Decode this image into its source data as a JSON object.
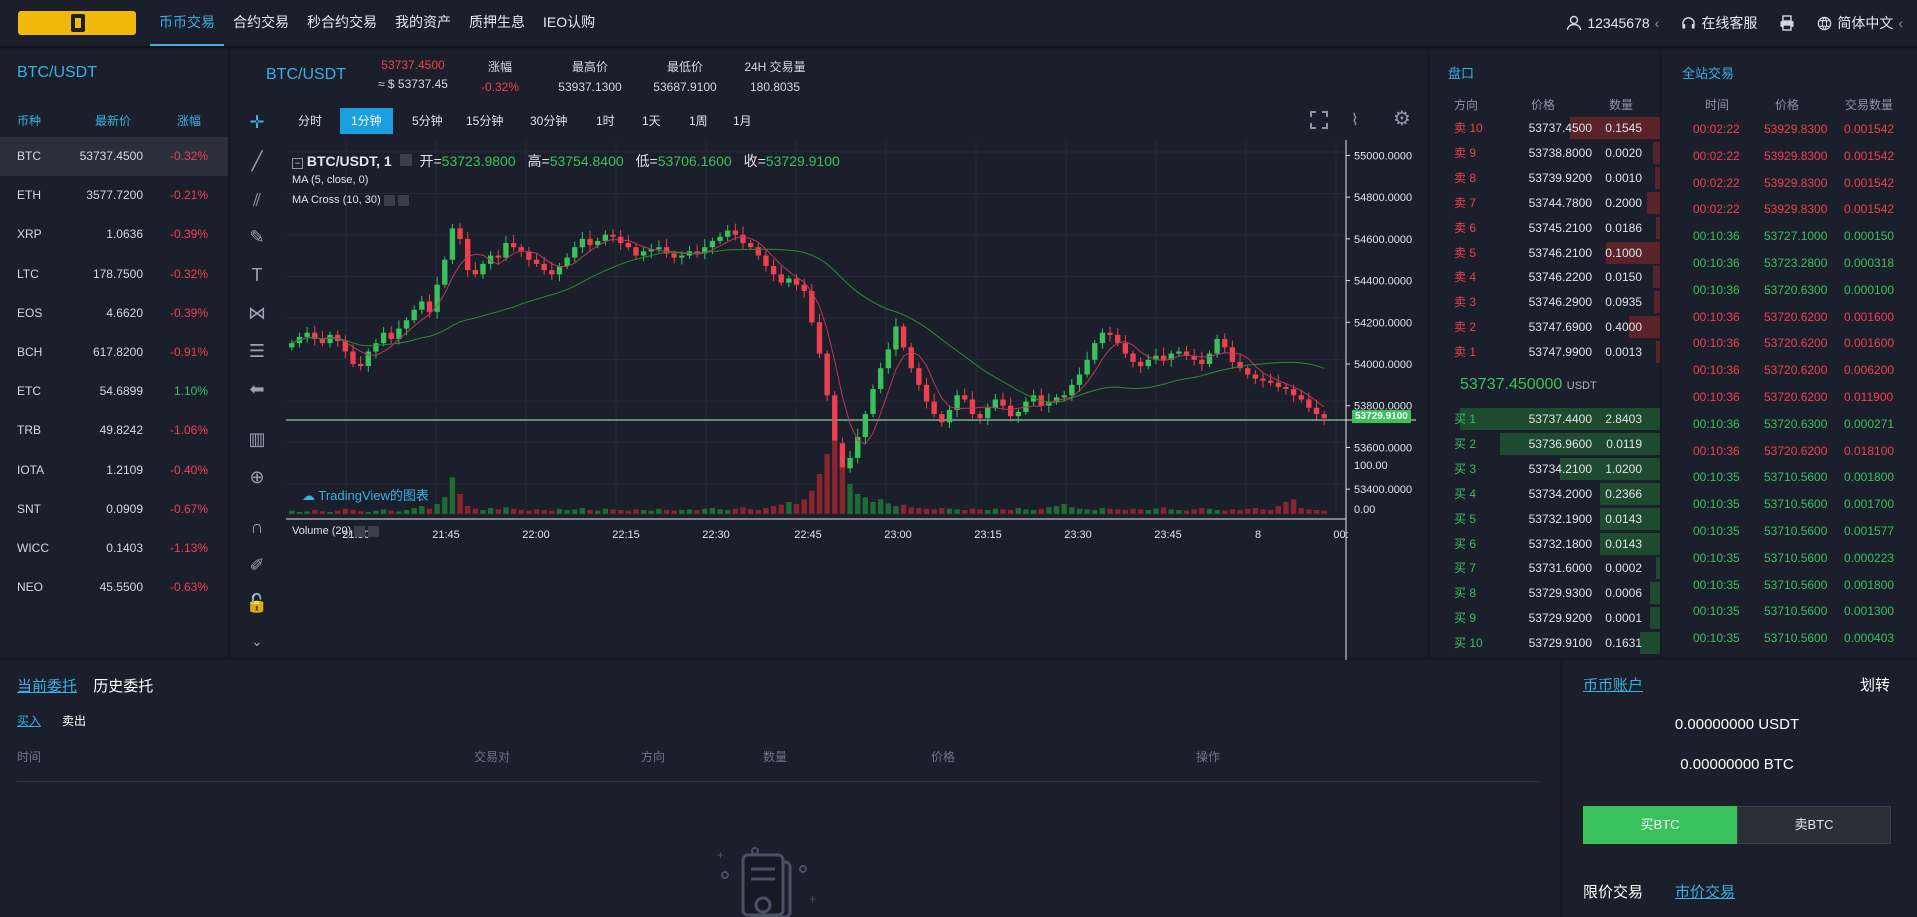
{
  "nav": {
    "items": [
      "币币交易",
      "合约交易",
      "秒合约交易",
      "我的资产",
      "质押生息",
      "IEO认购"
    ],
    "user": "12345678",
    "service": "在线客服",
    "lang": "简体中文"
  },
  "market": {
    "title": "BTC/USDT",
    "headers": [
      "币种",
      "最新价",
      "涨幅"
    ],
    "rows": [
      {
        "sym": "BTC",
        "price": "53737.4500",
        "chg": "-0.32%",
        "up": false
      },
      {
        "sym": "ETH",
        "price": "3577.7200",
        "chg": "-0.21%",
        "up": false
      },
      {
        "sym": "XRP",
        "price": "1.0636",
        "chg": "-0.39%",
        "up": false
      },
      {
        "sym": "LTC",
        "price": "178.7500",
        "chg": "-0.32%",
        "up": false
      },
      {
        "sym": "EOS",
        "price": "4.6620",
        "chg": "-0.39%",
        "up": false
      },
      {
        "sym": "BCH",
        "price": "617.8200",
        "chg": "-0.91%",
        "up": false
      },
      {
        "sym": "ETC",
        "price": "54.6899",
        "chg": "1.10%",
        "up": true
      },
      {
        "sym": "TRB",
        "price": "49.8242",
        "chg": "-1.06%",
        "up": false
      },
      {
        "sym": "IOTA",
        "price": "1.2109",
        "chg": "-0.40%",
        "up": false
      },
      {
        "sym": "SNT",
        "price": "0.0909",
        "chg": "-0.67%",
        "up": false
      },
      {
        "sym": "WICC",
        "price": "0.1403",
        "chg": "-1.13%",
        "up": false
      },
      {
        "sym": "NEO",
        "price": "45.5500",
        "chg": "-0.63%",
        "up": false
      }
    ]
  },
  "ticker": {
    "pair": "BTC/USDT",
    "last": "53737.4500",
    "last_usd": "≈ $ 53737.45",
    "chg_label": "涨幅",
    "chg": "-0.32%",
    "high_label": "最高价",
    "high": "53937.1300",
    "low_label": "最低价",
    "low": "53687.9100",
    "vol_label": "24H 交易量",
    "vol": "180.8035"
  },
  "timeframes": [
    "分时",
    "1分钟",
    "5分钟",
    "15分钟",
    "30分钟",
    "1时",
    "1天",
    "1周",
    "1月"
  ],
  "chart": {
    "legend_title": "BTC/USDT, 1",
    "o_label": "开=",
    "o": "53723.9800",
    "h_label": "高=",
    "h": "53754.8400",
    "l_label": "低=",
    "l": "53706.1600",
    "c_label": "收=",
    "c": "53729.9100",
    "ma": "MA (5, close, 0)",
    "macross": "MA Cross (10, 30)",
    "volume": "Volume (20)",
    "watermark": "TradingView的图表",
    "price_ticks": [
      "55000.0000",
      "54800.0000",
      "54600.0000",
      "54400.0000",
      "54200.0000",
      "54000.0000",
      "53800.0000",
      "53600.0000",
      "53400.0000"
    ],
    "current": "53729.9100",
    "vol_ticks": [
      "100.00",
      "0.00"
    ],
    "time_ticks": [
      "21:30",
      "21:45",
      "22:00",
      "22:15",
      "22:30",
      "22:45",
      "23:00",
      "23:15",
      "23:30",
      "23:45",
      "8",
      "00:"
    ]
  },
  "chart_data": {
    "type": "candlestick",
    "ylim": [
      53300,
      55050
    ],
    "closes": [
      54100,
      54130,
      54150,
      54120,
      54100,
      54140,
      54110,
      54060,
      54000,
      53990,
      54060,
      54100,
      54150,
      54120,
      54170,
      54210,
      54260,
      54300,
      54250,
      54380,
      54500,
      54650,
      54600,
      54450,
      54430,
      54480,
      54520,
      54510,
      54580,
      54560,
      54540,
      54500,
      54480,
      54450,
      54430,
      54470,
      54510,
      54560,
      54600,
      54570,
      54590,
      54620,
      54610,
      54580,
      54560,
      54520,
      54540,
      54550,
      54560,
      54530,
      54510,
      54520,
      54540,
      54530,
      54560,
      54590,
      54610,
      54640,
      54620,
      54580,
      54560,
      54520,
      54470,
      54430,
      54390,
      54410,
      54380,
      54350,
      54200,
      54050,
      53850,
      53620,
      53500,
      53550,
      53650,
      53760,
      53880,
      53980,
      54070,
      54180,
      54080,
      53980,
      53900,
      53820,
      53760,
      53720,
      53780,
      53850,
      53830,
      53760,
      53740,
      53790,
      53830,
      53800,
      53750,
      53770,
      53820,
      53850,
      53800,
      53820,
      53840,
      53850,
      53900,
      53950,
      54020,
      54100,
      54150,
      54140,
      54100,
      54050,
      54010,
      53990,
      54020,
      54040,
      54020,
      54050,
      54060,
      54040,
      54020,
      54000,
      54050,
      54120,
      54080,
      54010,
      53980,
      53950,
      53930,
      53920,
      53910,
      53890,
      53880,
      53850,
      53830,
      53790,
      53760,
      53740
    ],
    "volumes": [
      5,
      3,
      4,
      6,
      4,
      3,
      5,
      8,
      6,
      4,
      3,
      5,
      7,
      5,
      4,
      6,
      9,
      12,
      8,
      15,
      25,
      55,
      30,
      12,
      8,
      6,
      9,
      7,
      10,
      8,
      6,
      5,
      7,
      6,
      5,
      8,
      6,
      7,
      9,
      6,
      5,
      8,
      7,
      6,
      5,
      7,
      6,
      5,
      8,
      6,
      5,
      6,
      7,
      6,
      8,
      9,
      7,
      6,
      8,
      10,
      7,
      6,
      9,
      12,
      14,
      18,
      15,
      22,
      35,
      60,
      90,
      110,
      70,
      45,
      30,
      25,
      18,
      22,
      16,
      12,
      14,
      10,
      9,
      8,
      7,
      9,
      8,
      7,
      6,
      8,
      7,
      6,
      8,
      7,
      6,
      9,
      7,
      6,
      8,
      10,
      12,
      15,
      10,
      8,
      7,
      6,
      9,
      8,
      7,
      6,
      8,
      7,
      6,
      8,
      10,
      7,
      6,
      5,
      7,
      9,
      8,
      6,
      5,
      7,
      6,
      8,
      9,
      7,
      6,
      12,
      18,
      22,
      9,
      7,
      6,
      5
    ]
  },
  "orderbook": {
    "title": "盘口",
    "headers": [
      "方向",
      "价格",
      "数量"
    ],
    "asks": [
      {
        "label": "卖 10",
        "price": "53737.4500",
        "qty": "0.1545",
        "depth": 1.0
      },
      {
        "label": "卖 9",
        "price": "53738.8000",
        "qty": "0.0020",
        "depth": 0.08
      },
      {
        "label": "卖 8",
        "price": "53739.9200",
        "qty": "0.0010",
        "depth": 0.06
      },
      {
        "label": "卖 7",
        "price": "53744.7800",
        "qty": "0.2000",
        "depth": 0.15
      },
      {
        "label": "卖 6",
        "price": "53745.2100",
        "qty": "0.0186",
        "depth": 0.05
      },
      {
        "label": "卖 5",
        "price": "53746.2100",
        "qty": "0.1000",
        "depth": 0.6
      },
      {
        "label": "卖 4",
        "price": "53746.2200",
        "qty": "0.0150",
        "depth": 0.08
      },
      {
        "label": "卖 3",
        "price": "53746.2900",
        "qty": "0.0935",
        "depth": 0.07
      },
      {
        "label": "卖 2",
        "price": "53747.6900",
        "qty": "0.4000",
        "depth": 0.35
      },
      {
        "label": "卖 1",
        "price": "53747.9900",
        "qty": "0.0013",
        "depth": 0.04
      }
    ],
    "mid": "53737.450000",
    "mid_unit": "USDT",
    "bids": [
      {
        "label": "买 1",
        "price": "53737.4400",
        "qty": "2.8403",
        "depth": 1.0
      },
      {
        "label": "买 2",
        "price": "53736.9600",
        "qty": "0.0119",
        "depth": 0.8
      },
      {
        "label": "买 3",
        "price": "53734.2100",
        "qty": "1.0200",
        "depth": 0.5
      },
      {
        "label": "买 4",
        "price": "53734.2000",
        "qty": "0.2366",
        "depth": 0.3
      },
      {
        "label": "买 5",
        "price": "53732.1900",
        "qty": "0.0143",
        "depth": 0.3
      },
      {
        "label": "买 6",
        "price": "53732.1800",
        "qty": "0.0143",
        "depth": 0.3
      },
      {
        "label": "买 7",
        "price": "53731.6000",
        "qty": "0.0002",
        "depth": 0.02
      },
      {
        "label": "买 8",
        "price": "53729.9300",
        "qty": "0.0006",
        "depth": 0.05
      },
      {
        "label": "买 9",
        "price": "53729.9200",
        "qty": "0.0001",
        "depth": 0.05
      },
      {
        "label": "买 10",
        "price": "53729.9100",
        "qty": "0.1631",
        "depth": 0.1
      }
    ]
  },
  "trades": {
    "title": "全站交易",
    "headers": [
      "时间",
      "价格",
      "交易数量"
    ],
    "rows": [
      {
        "t": "00:02:22",
        "p": "53929.8300",
        "q": "0.001542",
        "up": false
      },
      {
        "t": "00:02:22",
        "p": "53929.8300",
        "q": "0.001542",
        "up": false
      },
      {
        "t": "00:02:22",
        "p": "53929.8300",
        "q": "0.001542",
        "up": false
      },
      {
        "t": "00:02:22",
        "p": "53929.8300",
        "q": "0.001542",
        "up": false
      },
      {
        "t": "00:10:36",
        "p": "53727.1000",
        "q": "0.000150",
        "up": true
      },
      {
        "t": "00:10:36",
        "p": "53723.2800",
        "q": "0.000318",
        "up": true
      },
      {
        "t": "00:10:36",
        "p": "53720.6300",
        "q": "0.000100",
        "up": true
      },
      {
        "t": "00:10:36",
        "p": "53720.6200",
        "q": "0.001600",
        "up": false
      },
      {
        "t": "00:10:36",
        "p": "53720.6200",
        "q": "0.001600",
        "up": false
      },
      {
        "t": "00:10:36",
        "p": "53720.6200",
        "q": "0.006200",
        "up": false
      },
      {
        "t": "00:10:36",
        "p": "53720.6200",
        "q": "0.011900",
        "up": false
      },
      {
        "t": "00:10:36",
        "p": "53720.6300",
        "q": "0.000271",
        "up": true
      },
      {
        "t": "00:10:36",
        "p": "53720.6200",
        "q": "0.018100",
        "up": false
      },
      {
        "t": "00:10:35",
        "p": "53710.5600",
        "q": "0.001800",
        "up": true
      },
      {
        "t": "00:10:35",
        "p": "53710.5600",
        "q": "0.001700",
        "up": true
      },
      {
        "t": "00:10:35",
        "p": "53710.5600",
        "q": "0.001577",
        "up": true
      },
      {
        "t": "00:10:35",
        "p": "53710.5600",
        "q": "0.000223",
        "up": true
      },
      {
        "t": "00:10:35",
        "p": "53710.5600",
        "q": "0.001800",
        "up": true
      },
      {
        "t": "00:10:35",
        "p": "53710.5600",
        "q": "0.001300",
        "up": true
      },
      {
        "t": "00:10:35",
        "p": "53710.5600",
        "q": "0.000403",
        "up": true
      }
    ]
  },
  "orders": {
    "tab_current": "当前委托",
    "tab_history": "历史委托",
    "sub_buy": "买入",
    "sub_sell": "卖出",
    "cols": [
      "时间",
      "交易对",
      "方向",
      "数量",
      "价格",
      "操作"
    ]
  },
  "account": {
    "title": "币币账户",
    "transfer": "划转",
    "usdt": "0.00000000 USDT",
    "btc": "0.00000000 BTC",
    "buy": "买BTC",
    "sell": "卖BTC",
    "limit": "限价交易",
    "market": "市价交易"
  }
}
